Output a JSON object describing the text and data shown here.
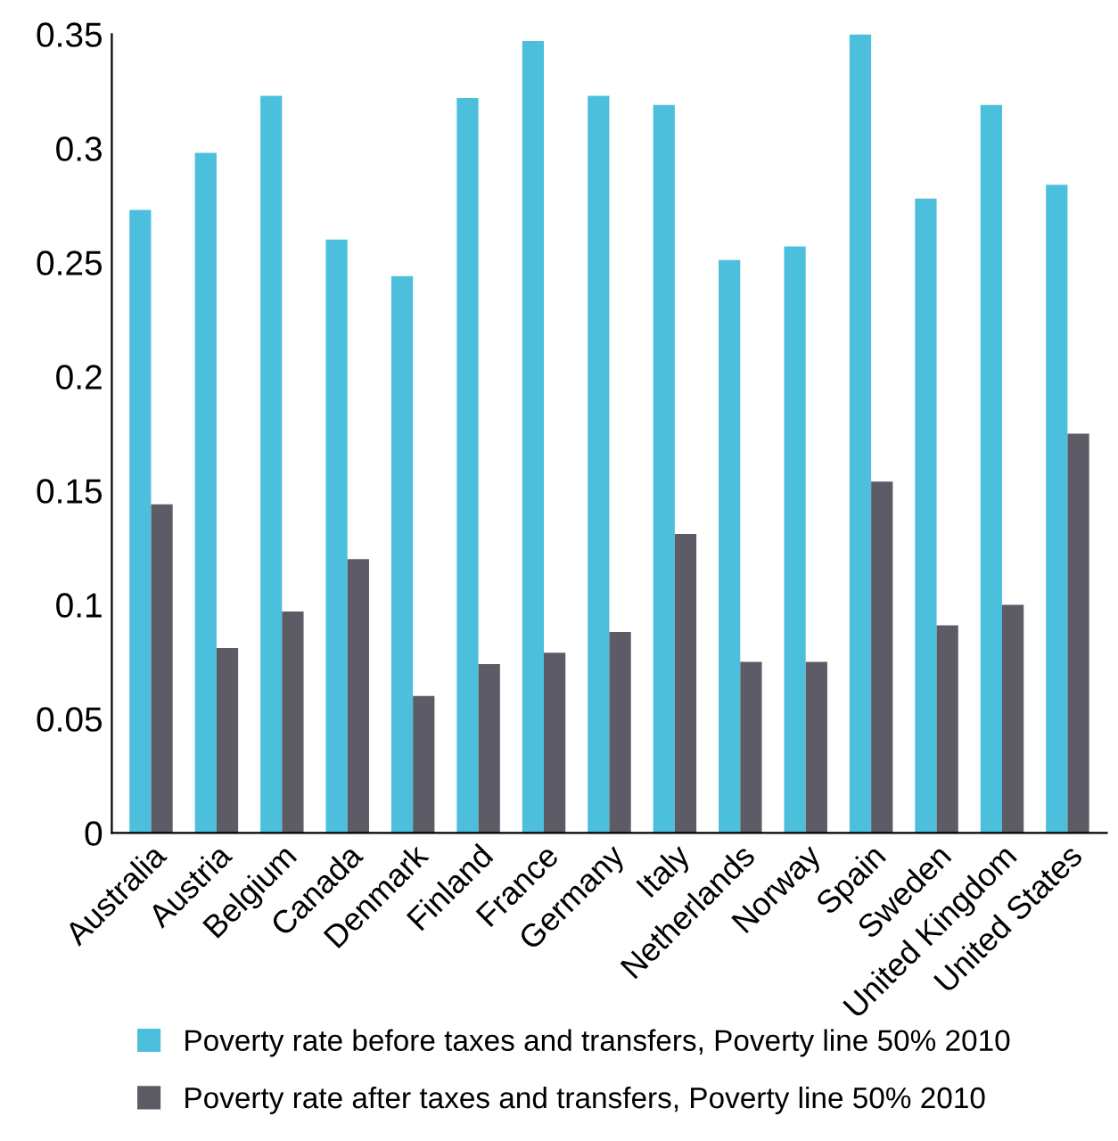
{
  "chart_data": {
    "type": "bar",
    "categories": [
      "Australia",
      "Austria",
      "Belgium",
      "Canada",
      "Denmark",
      "Finland",
      "France",
      "Germany",
      "Italy",
      "Netherlands",
      "Norway",
      "Spain",
      "Sweden",
      "United Kingdom",
      "United States"
    ],
    "series": [
      {
        "name": "Poverty rate before taxes and transfers, Poverty line 50% 2010",
        "color": "#4bbfdc",
        "values": [
          0.273,
          0.298,
          0.323,
          0.26,
          0.244,
          0.322,
          0.347,
          0.323,
          0.319,
          0.251,
          0.257,
          0.35,
          0.278,
          0.319,
          0.284
        ]
      },
      {
        "name": "Poverty rate after taxes and transfers, Poverty line 50% 2010",
        "color": "#5d5c66",
        "values": [
          0.144,
          0.081,
          0.097,
          0.12,
          0.06,
          0.074,
          0.079,
          0.088,
          0.131,
          0.075,
          0.075,
          0.154,
          0.091,
          0.1,
          0.175
        ]
      }
    ],
    "ylim": [
      0,
      0.35
    ],
    "yticks": [
      0,
      {
        "value": 0.05,
        "label": "0.05"
      },
      {
        "value": 0.1,
        "label": "0.1"
      },
      {
        "value": 0.15,
        "label": "0.15"
      },
      {
        "value": 0.2,
        "label": "0.2"
      },
      {
        "value": 0.25,
        "label": "0.25"
      },
      {
        "value": 0.3,
        "label": "0.3"
      },
      {
        "value": 0.35,
        "label": "0.35"
      }
    ],
    "grid": false,
    "legend": "bottom"
  }
}
